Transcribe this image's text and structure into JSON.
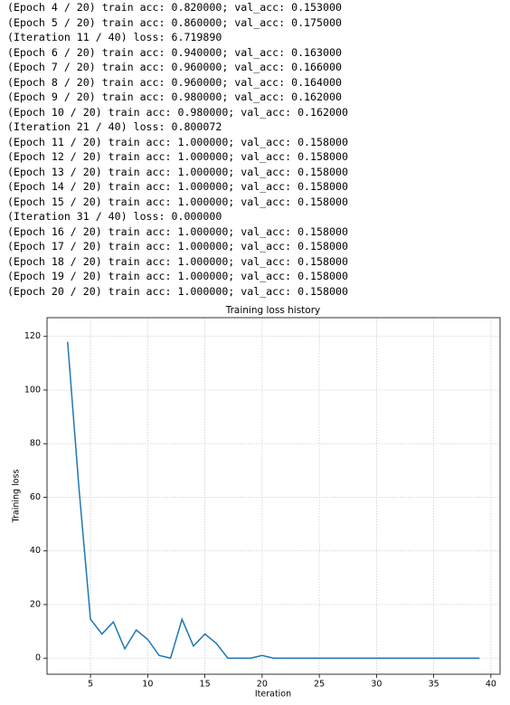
{
  "log_lines": [
    "(Epoch 4 / 20) train acc: 0.820000; val_acc: 0.153000",
    "(Epoch 5 / 20) train acc: 0.860000; val_acc: 0.175000",
    "(Iteration 11 / 40) loss: 6.719890",
    "(Epoch 6 / 20) train acc: 0.940000; val_acc: 0.163000",
    "(Epoch 7 / 20) train acc: 0.960000; val_acc: 0.166000",
    "(Epoch 8 / 20) train acc: 0.960000; val_acc: 0.164000",
    "(Epoch 9 / 20) train acc: 0.980000; val_acc: 0.162000",
    "(Epoch 10 / 20) train acc: 0.980000; val_acc: 0.162000",
    "(Iteration 21 / 40) loss: 0.800072",
    "(Epoch 11 / 20) train acc: 1.000000; val_acc: 0.158000",
    "(Epoch 12 / 20) train acc: 1.000000; val_acc: 0.158000",
    "(Epoch 13 / 20) train acc: 1.000000; val_acc: 0.158000",
    "(Epoch 14 / 20) train acc: 1.000000; val_acc: 0.158000",
    "(Epoch 15 / 20) train acc: 1.000000; val_acc: 0.158000",
    "(Iteration 31 / 40) loss: 0.000000",
    "(Epoch 16 / 20) train acc: 1.000000; val_acc: 0.158000",
    "(Epoch 17 / 20) train acc: 1.000000; val_acc: 0.158000",
    "(Epoch 18 / 20) train acc: 1.000000; val_acc: 0.158000",
    "(Epoch 19 / 20) train acc: 1.000000; val_acc: 0.158000",
    "(Epoch 20 / 20) train acc: 1.000000; val_acc: 0.158000"
  ],
  "chart_data": {
    "type": "line",
    "title": "Training loss history",
    "x_label": "Iteration",
    "y_label": "Training loss",
    "x": [
      3,
      4,
      5,
      6,
      7,
      8,
      9,
      10,
      11,
      12,
      13,
      14,
      15,
      16,
      17,
      18,
      19,
      20,
      21,
      22,
      23,
      24,
      25,
      26,
      27,
      28,
      29,
      30,
      31,
      32,
      33,
      34,
      35,
      36,
      37,
      38,
      39
    ],
    "values": [
      118,
      63,
      14.5,
      9,
      13.5,
      3.5,
      10.5,
      7,
      1,
      0,
      14.5,
      4.5,
      9,
      5.5,
      0,
      0,
      0,
      1,
      0,
      0,
      0,
      0,
      0,
      0,
      0,
      0,
      0,
      0,
      0,
      0,
      0,
      0,
      0,
      0,
      0,
      0,
      0
    ],
    "color": "#1f77b4",
    "grid": true,
    "xlim": [
      1.2,
      40.8
    ],
    "ylim": [
      -6,
      127
    ],
    "xticks": [
      5,
      10,
      15,
      20,
      25,
      30,
      35,
      40
    ],
    "yticks": [
      0,
      20,
      40,
      60,
      80,
      100,
      120
    ]
  }
}
